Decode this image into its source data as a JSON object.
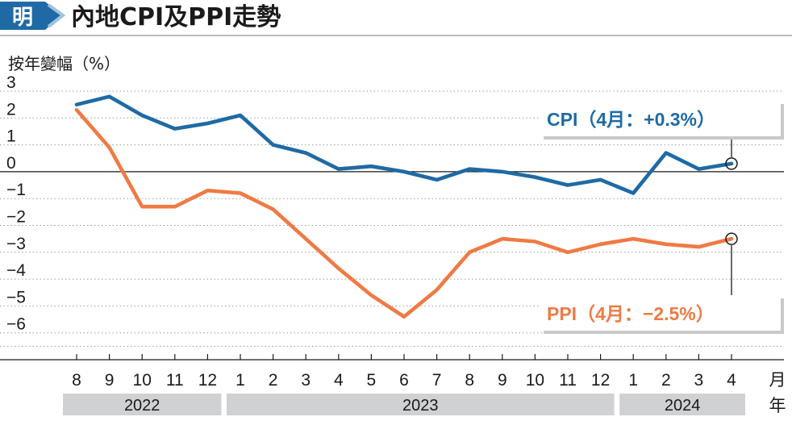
{
  "header": {
    "logo_char": "明",
    "title": "內地CPI及PPI走勢"
  },
  "chart_data": {
    "type": "line",
    "title": "內地CPI及PPI走勢",
    "ylabel": "按年變幅（%）",
    "ylim": [
      -6.5,
      3
    ],
    "yticks": [
      3,
      2,
      1,
      0,
      -1,
      -2,
      -3,
      -4,
      -5,
      -6
    ],
    "ytick_labels": [
      "3",
      "2",
      "1",
      "0",
      "−1",
      "−2",
      "−3",
      "−4",
      "−5",
      "−6"
    ],
    "x_month_labels": [
      "8",
      "9",
      "10",
      "11",
      "12",
      "1",
      "2",
      "3",
      "4",
      "5",
      "6",
      "7",
      "8",
      "9",
      "10",
      "11",
      "12",
      "1",
      "2",
      "3",
      "4"
    ],
    "x_unit_month": "月",
    "x_unit_year": "年",
    "years": [
      {
        "label": "2022",
        "start": 0,
        "end": 4
      },
      {
        "label": "2023",
        "start": 5,
        "end": 16
      },
      {
        "label": "2024",
        "start": 17,
        "end": 20
      }
    ],
    "grid": "dotted-horizontal",
    "series": [
      {
        "name": "CPI",
        "color": "#1f6aa5",
        "values": [
          2.5,
          2.8,
          2.1,
          1.6,
          1.8,
          2.1,
          1.0,
          0.7,
          0.1,
          0.2,
          0.0,
          -0.3,
          0.1,
          0.0,
          -0.2,
          -0.5,
          -0.3,
          -0.8,
          0.7,
          0.1,
          0.3
        ]
      },
      {
        "name": "PPI",
        "color": "#ef7a45",
        "values": [
          2.3,
          0.9,
          -1.3,
          -1.3,
          -0.7,
          -0.8,
          -1.4,
          -2.5,
          -3.6,
          -4.6,
          -5.4,
          -4.4,
          -3.0,
          -2.5,
          -2.6,
          -3.0,
          -2.7,
          -2.5,
          -2.7,
          -2.8,
          -2.5
        ]
      }
    ],
    "annotations": [
      {
        "series": "CPI",
        "text": "CPI（4月：+0.3%）",
        "color": "#1f6aa5",
        "index": 20
      },
      {
        "series": "PPI",
        "text": "PPI（4月：−2.5%）",
        "color": "#ef7a45",
        "index": 20
      }
    ]
  }
}
